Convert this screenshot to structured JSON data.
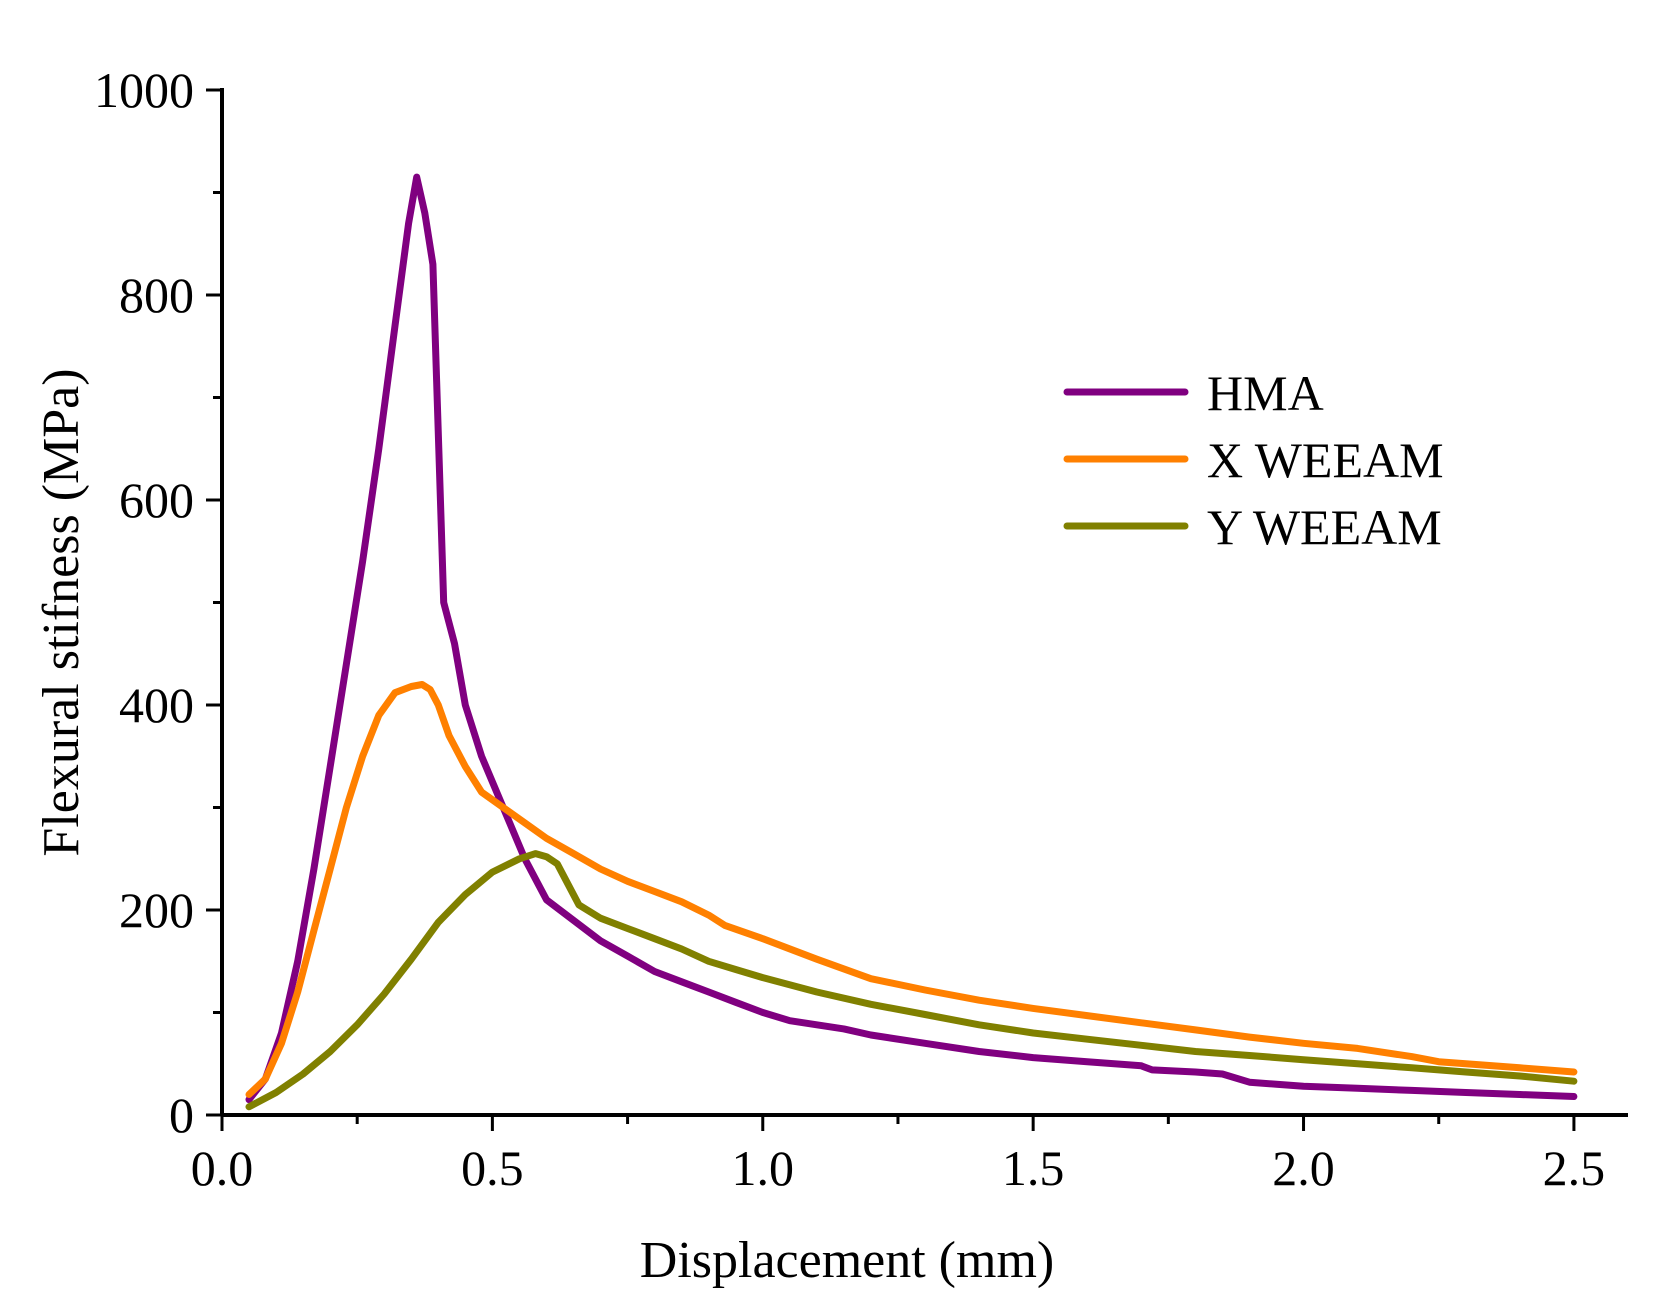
{
  "chart_data": {
    "type": "line",
    "title": "",
    "xlabel": "Displacement (mm)",
    "ylabel": "Flexural stifness (MPa)",
    "xlim": [
      0.0,
      2.6
    ],
    "ylim": [
      0,
      1000
    ],
    "xticks": [
      0.0,
      0.5,
      1.0,
      1.5,
      2.0,
      2.5
    ],
    "xtick_labels": [
      "0.0",
      "0.5",
      "1.0",
      "1.5",
      "2.0",
      "2.5"
    ],
    "yticks": [
      0,
      200,
      400,
      600,
      800,
      1000
    ],
    "ytick_labels": [
      "0",
      "200",
      "400",
      "600",
      "800",
      "1000"
    ],
    "grid": false,
    "legend_position": "upper-right",
    "series": [
      {
        "name": "HMA",
        "color": "#800080",
        "x": [
          0.05,
          0.08,
          0.11,
          0.14,
          0.17,
          0.2,
          0.23,
          0.26,
          0.29,
          0.32,
          0.345,
          0.36,
          0.375,
          0.39,
          0.41,
          0.43,
          0.45,
          0.48,
          0.52,
          0.56,
          0.6,
          0.65,
          0.7,
          0.75,
          0.8,
          0.85,
          0.9,
          0.95,
          1.0,
          1.05,
          1.1,
          1.15,
          1.2,
          1.3,
          1.4,
          1.5,
          1.6,
          1.7,
          1.72,
          1.8,
          1.85,
          1.9,
          1.95,
          2.0,
          2.1,
          2.2,
          2.3,
          2.4,
          2.5
        ],
        "y": [
          15,
          35,
          80,
          150,
          240,
          340,
          440,
          540,
          650,
          770,
          870,
          915,
          880,
          830,
          500,
          460,
          400,
          350,
          300,
          250,
          210,
          190,
          170,
          155,
          140,
          130,
          120,
          110,
          100,
          92,
          88,
          84,
          78,
          70,
          62,
          56,
          52,
          48,
          44,
          42,
          40,
          32,
          30,
          28,
          26,
          24,
          22,
          20,
          18
        ]
      },
      {
        "name": "X WEEAM",
        "color": "#ff8000",
        "x": [
          0.05,
          0.08,
          0.11,
          0.14,
          0.17,
          0.2,
          0.23,
          0.26,
          0.29,
          0.32,
          0.35,
          0.37,
          0.385,
          0.4,
          0.42,
          0.45,
          0.48,
          0.52,
          0.56,
          0.6,
          0.65,
          0.7,
          0.75,
          0.8,
          0.85,
          0.9,
          0.93,
          1.0,
          1.1,
          1.2,
          1.3,
          1.4,
          1.5,
          1.6,
          1.7,
          1.8,
          1.9,
          2.0,
          2.1,
          2.2,
          2.25,
          2.3,
          2.4,
          2.5
        ],
        "y": [
          20,
          35,
          70,
          120,
          180,
          240,
          300,
          350,
          390,
          412,
          418,
          420,
          415,
          400,
          370,
          340,
          315,
          300,
          285,
          270,
          255,
          240,
          228,
          218,
          208,
          195,
          185,
          172,
          152,
          133,
          122,
          112,
          104,
          97,
          90,
          83,
          76,
          70,
          65,
          57,
          52,
          50,
          46,
          42
        ]
      },
      {
        "name": "Y WEEAM",
        "color": "#808000",
        "x": [
          0.05,
          0.1,
          0.15,
          0.2,
          0.25,
          0.3,
          0.35,
          0.4,
          0.45,
          0.5,
          0.55,
          0.58,
          0.6,
          0.62,
          0.66,
          0.7,
          0.75,
          0.8,
          0.85,
          0.9,
          0.95,
          1.0,
          1.1,
          1.2,
          1.3,
          1.4,
          1.5,
          1.6,
          1.7,
          1.8,
          1.9,
          2.0,
          2.1,
          2.2,
          2.3,
          2.4,
          2.5
        ],
        "y": [
          8,
          22,
          40,
          62,
          88,
          118,
          152,
          188,
          215,
          237,
          250,
          255,
          252,
          245,
          205,
          192,
          182,
          172,
          162,
          150,
          142,
          134,
          120,
          108,
          98,
          88,
          80,
          74,
          68,
          62,
          58,
          54,
          50,
          46,
          42,
          38,
          33
        ]
      }
    ]
  }
}
